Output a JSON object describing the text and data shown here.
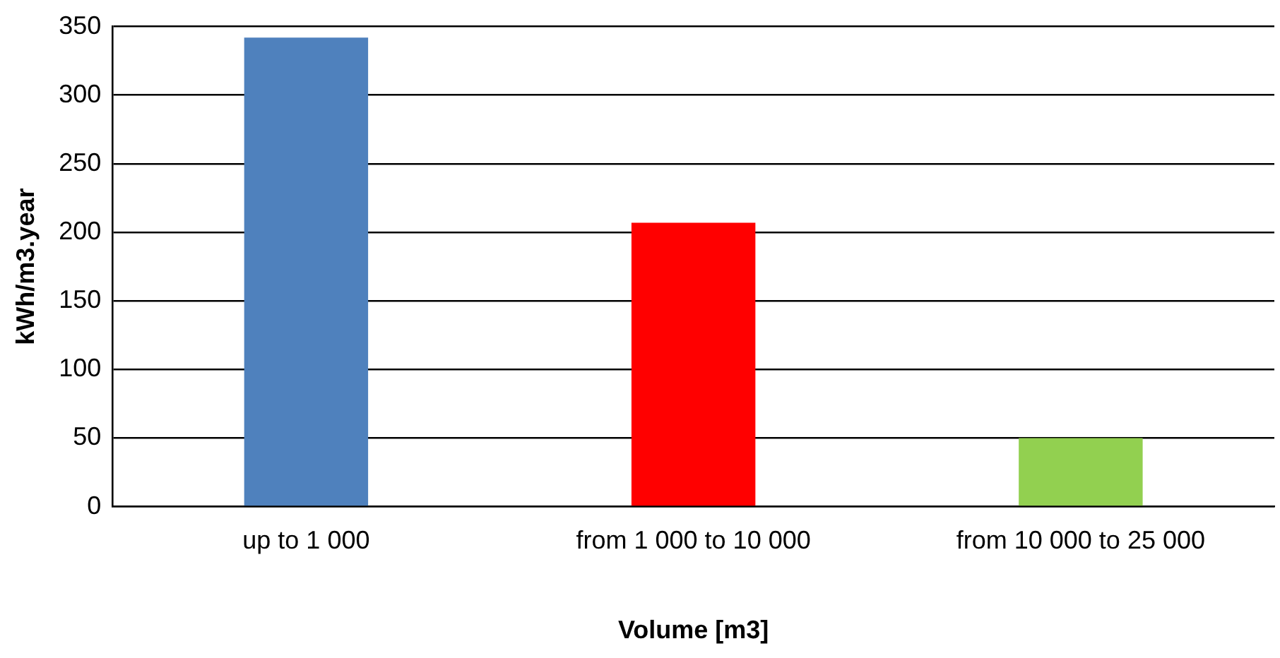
{
  "chart_data": {
    "type": "bar",
    "xlabel": "Volume [m3]",
    "ylabel": "kWh/m3.year",
    "categories": [
      "up to 1 000",
      "from 1 000 to 10 000",
      "from 10 000 to 25 000"
    ],
    "values": [
      342,
      207,
      50
    ],
    "colors": [
      "#4f81bd",
      "#ff0000",
      "#92d050"
    ],
    "ylim": [
      0,
      350
    ],
    "yticks": [
      0,
      50,
      100,
      150,
      200,
      250,
      300,
      350
    ],
    "grid": "y",
    "legend": false
  }
}
